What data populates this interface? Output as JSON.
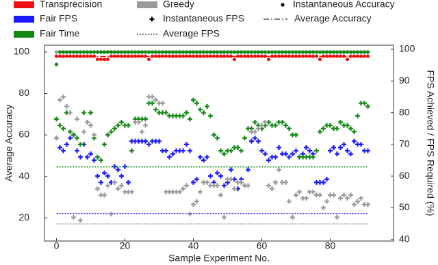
{
  "chart_data": {
    "type": "scatter",
    "xlabel": "Sample Experiment No.",
    "ylabel": "Average Accuracy",
    "y2label": "FPS Achieved / FPS Required (%)",
    "x": [
      0,
      1,
      2,
      3,
      4,
      5,
      6,
      7,
      8,
      9,
      10,
      11,
      12,
      13,
      14,
      15,
      16,
      17,
      18,
      19,
      20,
      21,
      22,
      23,
      24,
      25,
      26,
      27,
      28,
      29,
      30,
      31,
      32,
      33,
      34,
      35,
      36,
      37,
      38,
      39,
      40,
      41,
      42,
      43,
      44,
      45,
      46,
      47,
      48,
      49,
      50,
      51,
      52,
      53,
      54,
      55,
      56,
      57,
      58,
      59,
      60,
      61,
      62,
      63,
      64,
      65,
      66,
      67,
      68,
      69,
      70,
      71,
      72,
      73,
      74,
      75,
      76,
      77,
      78,
      79,
      80,
      81,
      82,
      83,
      84,
      85,
      86,
      87,
      88,
      89,
      90,
      91
    ],
    "xlim": [
      -3.5,
      98.5
    ],
    "xticks": [
      0,
      20,
      40,
      60,
      80
    ],
    "ylim": [
      8.8,
      103.3
    ],
    "yticks": [
      20,
      40,
      60,
      80,
      100
    ],
    "y2lim": [
      39.5,
      101.3
    ],
    "y2ticks": [
      40,
      50,
      60,
      70,
      80,
      90,
      100
    ],
    "series": [
      {
        "name": "Transprecision",
        "color": "#ee1111",
        "accuracy": [
          98,
          98,
          98,
          98,
          98,
          98,
          98,
          98,
          98,
          98,
          98,
          98,
          96.5,
          96.5,
          96.5,
          96.5,
          98,
          98,
          98,
          98,
          98,
          98,
          98,
          98,
          98,
          98,
          98,
          96.5,
          98,
          98,
          98,
          98,
          98,
          98,
          98,
          98,
          98,
          98,
          98,
          98,
          98,
          98,
          98,
          98,
          98,
          98,
          98,
          98,
          98,
          98,
          98,
          98,
          96.5,
          98,
          98,
          98,
          98,
          98,
          98,
          98,
          98,
          98,
          96.5,
          98,
          98,
          98,
          98,
          98,
          98,
          98,
          98,
          98,
          98,
          98,
          98,
          98,
          98,
          96.5,
          98,
          98,
          98,
          98,
          98,
          98,
          98,
          96.5,
          98,
          98,
          98,
          98,
          98,
          98
        ],
        "avg_accuracy": 97.9
      },
      {
        "name": "Fair FPS",
        "color": "#1a1aff",
        "fps": [
          72,
          69,
          68,
          70,
          72,
          73,
          68,
          66,
          70,
          66,
          67,
          65,
          60,
          58,
          61,
          60,
          58,
          63,
          62,
          60,
          63,
          58,
          71,
          71,
          71,
          71,
          71,
          70,
          71,
          71,
          71,
          68,
          68,
          66,
          67,
          68,
          68,
          68,
          70,
          68,
          58,
          59,
          66,
          65,
          66,
          60,
          58,
          61,
          60,
          57,
          58,
          62,
          59,
          56,
          59,
          57,
          62,
          71,
          72,
          71,
          68,
          67,
          65,
          66,
          66,
          69,
          67,
          67,
          66,
          67,
          68,
          66,
          67,
          69,
          68,
          67,
          58,
          58,
          58,
          59,
          68,
          69,
          67,
          69,
          70,
          68,
          67,
          71,
          70,
          70,
          68,
          68
        ],
        "avg_fps": 48.2
      },
      {
        "name": "Fair Time",
        "color": "#118811",
        "accuracy": [
          94,
          100,
          100,
          100,
          100,
          100,
          100,
          100,
          100,
          100,
          100,
          100,
          100,
          100,
          100,
          100,
          100,
          100,
          100,
          100,
          100,
          100,
          100,
          100,
          100,
          100,
          100,
          100,
          100,
          100,
          100,
          100,
          100,
          100,
          100,
          100,
          100,
          100,
          100,
          100,
          100,
          100,
          100,
          100,
          100,
          100,
          100,
          100,
          100,
          100,
          100,
          100,
          100,
          100,
          100,
          100,
          100,
          100,
          100,
          100,
          100,
          100,
          100,
          100,
          100,
          100,
          100,
          100,
          100,
          100,
          100,
          100,
          100,
          100,
          100,
          100,
          100,
          100,
          100,
          100,
          100,
          100,
          100,
          100,
          100,
          100,
          100,
          100,
          100,
          100,
          100,
          100
        ],
        "fps": [
          78,
          76,
          75,
          80,
          74,
          73,
          72,
          70,
          80,
          77,
          80,
          72,
          66,
          65,
          70,
          73,
          74,
          75,
          76,
          77,
          76,
          76,
          68,
          78,
          78,
          78,
          78,
          83,
          83,
          81,
          80,
          80,
          80,
          79,
          79,
          79,
          79,
          79,
          80,
          78,
          84,
          83,
          81,
          80,
          82,
          79,
          73,
          72,
          68,
          67,
          68,
          68,
          69,
          69,
          68,
          72,
          75,
          75,
          77,
          76,
          75,
          76,
          77,
          76,
          76,
          77,
          77,
          76,
          75,
          73,
          73,
          66,
          66,
          66,
          66,
          66,
          68,
          74,
          75,
          76,
          76,
          75,
          75,
          77,
          76,
          76,
          75,
          74,
          79,
          83,
          83,
          82
        ],
        "avg_fps": 62.9
      },
      {
        "name": "Greedy",
        "color": "#999999",
        "accuracy": [
          100,
          100,
          100,
          100,
          100,
          100,
          100,
          100,
          100,
          100,
          100,
          100,
          100,
          100,
          100,
          100,
          100,
          100,
          100,
          100,
          100,
          100,
          100,
          100,
          100,
          100,
          100,
          100,
          100,
          100,
          100,
          100,
          100,
          100,
          100,
          100,
          100,
          100,
          100,
          100,
          100,
          100,
          100,
          100,
          100,
          100,
          100,
          100,
          100,
          100,
          100,
          100,
          100,
          100,
          100,
          100,
          100,
          100,
          100,
          100,
          100,
          100,
          100,
          100,
          100,
          100,
          100,
          100,
          100,
          100,
          100,
          100,
          100,
          100,
          100,
          100,
          100,
          100,
          100,
          100,
          100,
          100,
          100,
          100,
          100,
          100,
          100,
          100,
          100,
          100,
          100,
          100
        ],
        "fps": [
          72,
          84,
          85,
          82,
          80,
          47,
          78,
          46,
          74,
          77,
          76,
          73,
          56,
          54,
          54,
          57,
          48,
          58,
          56,
          57,
          55,
          55,
          55,
          77,
          77,
          74,
          76,
          85,
          85,
          84,
          83,
          83,
          55,
          55,
          55,
          55,
          55,
          56,
          57,
          48,
          51,
          52,
          55,
          58,
          58,
          57,
          57,
          57,
          54,
          47,
          59,
          59,
          56,
          58,
          58,
          57,
          57,
          74,
          74,
          75,
          76,
          77,
          57,
          56,
          58,
          62,
          58,
          58,
          52,
          47,
          54,
          55,
          53,
          53,
          55,
          55,
          54,
          54,
          50,
          52,
          54,
          54,
          47,
          53,
          54,
          53,
          54,
          51,
          52,
          53,
          51,
          51
        ],
        "avg_fps": 44.9
      }
    ],
    "legend_markers": {
      "accuracy": "Instantaneous Accuracy",
      "fps": "Instantaneous FPS",
      "avg_accuracy": "Average Accuracy",
      "avg_fps": "Average FPS"
    }
  }
}
